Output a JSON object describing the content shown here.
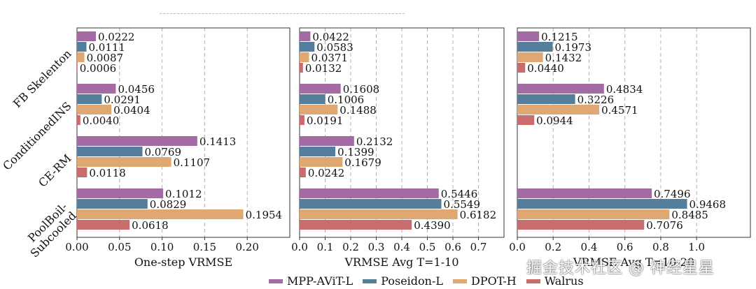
{
  "chart_data": {
    "type": "bar",
    "orientation": "horizontal",
    "categories": [
      "FB Skelenton",
      "ConditionedINS",
      "CE-RM",
      "PoolBoil-\nSubcooled"
    ],
    "series_colors": [
      "#a36aa4",
      "#557e9c",
      "#dfa873",
      "#c86c6e"
    ],
    "legend": {
      "placement": "bottom",
      "entries": [
        "MPP-AViT-L",
        "Poseidon-L",
        "DPOT-H",
        "Walrus"
      ]
    },
    "grid": "vertical-dashed",
    "panels": [
      {
        "xlabel": "One-step VRMSE",
        "xlim": [
          0,
          0.25
        ],
        "xticks": [
          "0.00",
          "0.05",
          "0.10",
          "0.15",
          "0.20"
        ],
        "groups": [
          {
            "values": [
              0.0222,
              0.0111,
              0.0087,
              0.0006
            ],
            "labels": [
              "0.0222",
              "0.0111",
              "0.0087",
              "0.0006"
            ]
          },
          {
            "values": [
              0.0456,
              0.0291,
              0.0404,
              0.004
            ],
            "labels": [
              "0.0456",
              "0.0291",
              "0.0404",
              "0.0040"
            ]
          },
          {
            "values": [
              0.1413,
              0.0769,
              0.1107,
              0.0118
            ],
            "labels": [
              "0.1413",
              "0.0769",
              "0.1107",
              "0.0118"
            ]
          },
          {
            "values": [
              0.1012,
              0.0829,
              0.1954,
              0.0618
            ],
            "labels": [
              "0.1012",
              "0.0829",
              "0.1954",
              "0.0618"
            ]
          }
        ]
      },
      {
        "xlabel": "VRMSE Avg T=1-10",
        "xlim": [
          0,
          0.8
        ],
        "xticks": [
          "0.0",
          "0.1",
          "0.2",
          "0.3",
          "0.4",
          "0.5",
          "0.6",
          "0.7"
        ],
        "groups": [
          {
            "values": [
              0.0422,
              0.0583,
              0.0371,
              0.0132
            ],
            "labels": [
              "0.0422",
              "0.0583",
              "0.0371",
              "0.0132"
            ]
          },
          {
            "values": [
              0.1608,
              0.1006,
              0.1488,
              0.0191
            ],
            "labels": [
              "0.1608",
              "0.1006",
              "0.1488",
              "0.0191"
            ]
          },
          {
            "values": [
              0.2132,
              0.1399,
              0.1679,
              0.0242
            ],
            "labels": [
              "0.2132",
              "0.1399",
              "0.1679",
              "0.0242"
            ]
          },
          {
            "values": [
              0.5446,
              0.5549,
              0.6182,
              0.439
            ],
            "labels": [
              "0.5446",
              "0.5549",
              "0.6182",
              "0.4390"
            ]
          }
        ]
      },
      {
        "xlabel": "VRMSE Avg T=10-20",
        "xlim": [
          0,
          1.3
        ],
        "xticks": [
          "0.0",
          "0.2",
          "0.4",
          "0.6",
          "0.8",
          "1.0"
        ],
        "groups": [
          {
            "values": [
              0.1215,
              0.1973,
              0.1432,
              0.044
            ],
            "labels": [
              "0.1215",
              "0.1973",
              "0.1432",
              "0.0440"
            ]
          },
          {
            "values": [
              0.4834,
              0.3226,
              0.4571,
              0.0944
            ],
            "labels": [
              "0.4834",
              "0.3226",
              "0.4571",
              "0.0944"
            ]
          },
          {
            "values": [
              null,
              null,
              null,
              null
            ],
            "labels": [
              "",
              "",
              "",
              ""
            ]
          },
          {
            "values": [
              0.7496,
              0.9468,
              0.8485,
              0.7076
            ],
            "labels": [
              "0.7496",
              "0.9468",
              "0.8485",
              "0.7076"
            ]
          }
        ]
      }
    ]
  },
  "watermark": "掘金技术社区 @ 神经星星"
}
